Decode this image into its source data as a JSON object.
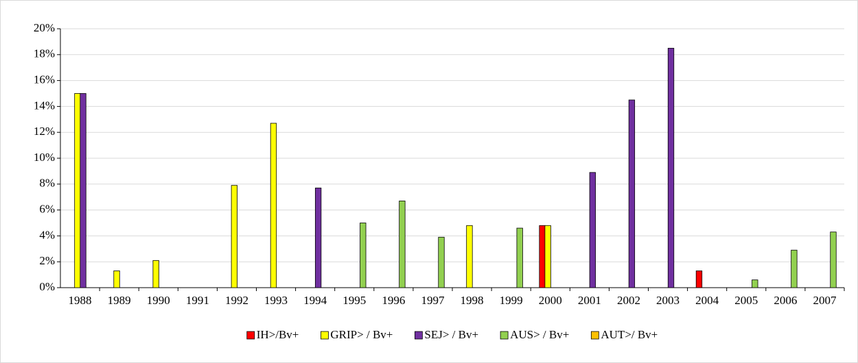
{
  "chart_data": {
    "type": "bar",
    "categories": [
      "1988",
      "1989",
      "1990",
      "1991",
      "1992",
      "1993",
      "1994",
      "1995",
      "1996",
      "1997",
      "1998",
      "1999",
      "2000",
      "2001",
      "2002",
      "2003",
      "2004",
      "2005",
      "2006",
      "2007"
    ],
    "series": [
      {
        "name": "IH>/Bv+",
        "color": "#ff0000",
        "values": [
          null,
          null,
          null,
          null,
          null,
          null,
          null,
          null,
          null,
          null,
          null,
          null,
          4.8,
          null,
          null,
          null,
          1.3,
          null,
          null,
          null
        ]
      },
      {
        "name": "GRIP> / Bv+",
        "color": "#ffff00",
        "values": [
          15,
          1.3,
          2.1,
          null,
          7.9,
          12.7,
          null,
          null,
          null,
          null,
          4.8,
          null,
          4.8,
          null,
          null,
          null,
          null,
          null,
          null,
          null
        ]
      },
      {
        "name": "SEJ> / Bv+",
        "color": "#7030a0",
        "values": [
          15,
          null,
          null,
          null,
          null,
          null,
          7.7,
          null,
          null,
          null,
          null,
          null,
          null,
          8.9,
          14.5,
          18.5,
          null,
          null,
          null,
          null
        ]
      },
      {
        "name": "AUS> / Bv+",
        "color": "#92d050",
        "values": [
          null,
          null,
          null,
          null,
          null,
          null,
          null,
          5.0,
          6.7,
          3.9,
          null,
          4.6,
          null,
          null,
          null,
          null,
          null,
          0.6,
          2.9,
          4.3
        ]
      },
      {
        "name": "AUT>/ Bv+",
        "color": "#ffc000",
        "values": [
          null,
          null,
          null,
          null,
          null,
          null,
          null,
          null,
          null,
          null,
          null,
          null,
          null,
          null,
          null,
          null,
          null,
          null,
          null,
          null
        ]
      }
    ],
    "ylim": [
      0,
      20
    ],
    "yticks": [
      {
        "value": 0,
        "label": "0%"
      },
      {
        "value": 2,
        "label": "2%"
      },
      {
        "value": 4,
        "label": "4%"
      },
      {
        "value": 6,
        "label": "6%"
      },
      {
        "value": 8,
        "label": "8%"
      },
      {
        "value": 10,
        "label": "10%"
      },
      {
        "value": 12,
        "label": "12%"
      },
      {
        "value": 14,
        "label": "14%"
      },
      {
        "value": 16,
        "label": "16%"
      },
      {
        "value": 18,
        "label": "18%"
      },
      {
        "value": 20,
        "label": "20%"
      }
    ],
    "grid": true
  }
}
